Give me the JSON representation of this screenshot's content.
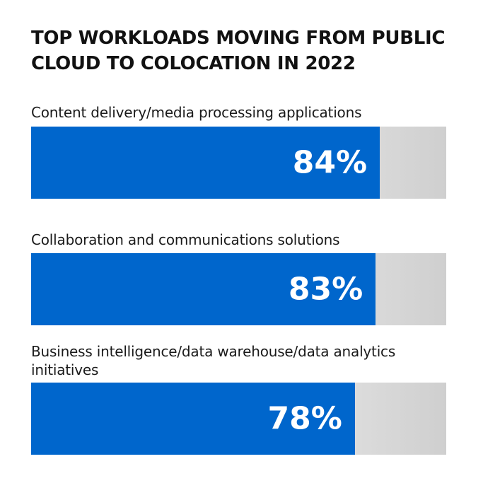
{
  "header": {
    "title": "TOP WORKLOADS MOVING FROM PUBLIC CLOUD TO COLOCATION IN 2022"
  },
  "colors": {
    "bar_fill": "#0066cc",
    "bar_track": "#e6e6e6",
    "value_text": "#ffffff"
  },
  "chart_data": {
    "type": "bar",
    "orientation": "horizontal",
    "title": "TOP WORKLOADS MOVING FROM PUBLIC CLOUD TO COLOCATION IN 2022",
    "categories": [
      "Content delivery/media processing applications",
      "Collaboration and communications solutions",
      "Business intelligence/data warehouse/data analytics initiatives"
    ],
    "values": [
      84,
      83,
      78
    ],
    "value_labels": [
      "84%",
      "83%",
      "78%"
    ],
    "xlim": [
      0,
      100
    ],
    "grid": false,
    "legend": "none"
  }
}
